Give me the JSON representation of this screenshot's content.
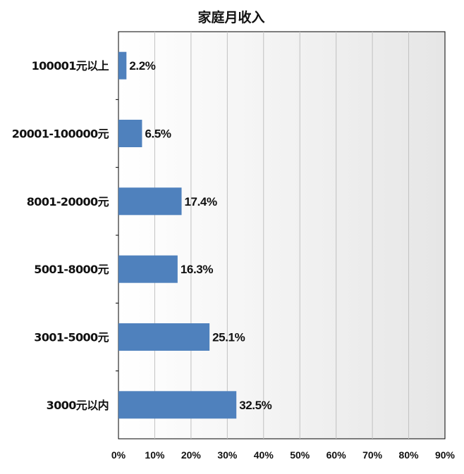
{
  "chart_data": {
    "type": "bar",
    "orientation": "horizontal",
    "title": "家庭月收入",
    "categories": [
      "100001元以上",
      "20001-100000元",
      "8001-20000元",
      "5001-8000元",
      "3001-5000元",
      "3000元以内"
    ],
    "values": [
      2.2,
      6.5,
      17.4,
      16.3,
      25.1,
      32.5
    ],
    "data_labels": [
      "2.2%",
      "6.5%",
      "17.4%",
      "16.3%",
      "25.1%",
      "32.5%"
    ],
    "xlim": [
      0,
      90
    ],
    "x_ticks": [
      "0%",
      "10%",
      "20%",
      "30%",
      "40%",
      "50%",
      "60%",
      "70%",
      "80%",
      "90%"
    ],
    "grid": true,
    "legend": "none",
    "colors": {
      "bar": "#4f81bd",
      "gridline": "#c0c0c0",
      "plot_background_start": "#ffffff",
      "plot_background_end": "#e6e6e6"
    }
  }
}
